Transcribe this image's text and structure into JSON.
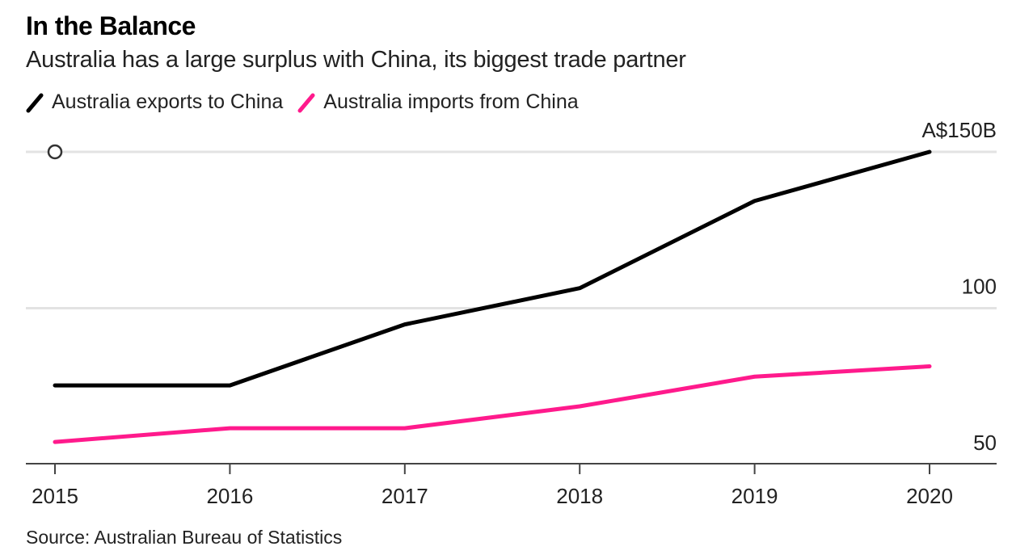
{
  "title": "In the Balance",
  "subtitle": "Australia has a large surplus with China, its biggest trade partner",
  "source": "Source: Australian Bureau of Statistics",
  "legend": [
    {
      "label": "Australia exports to China",
      "color": "#000000"
    },
    {
      "label": "Australia imports from China",
      "color": "#ff1a8c"
    }
  ],
  "chart_data": {
    "type": "line",
    "title": "In the Balance",
    "subtitle": "Australia has a large surplus with China, its biggest trade partner",
    "xlabel": "",
    "ylabel": "",
    "x": [
      "2015",
      "2016",
      "2017",
      "2018",
      "2019",
      "2020"
    ],
    "series": [
      {
        "name": "Australia exports to China",
        "color": "#000000",
        "values": [
          75.3,
          75.3,
          94.8,
          106.4,
          134.3,
          150.0
        ]
      },
      {
        "name": "Australia imports from China",
        "color": "#ff1a8c",
        "values": [
          57.2,
          61.6,
          61.6,
          68.6,
          78.1,
          81.4
        ]
      }
    ],
    "ylim": [
      50,
      150
    ],
    "yticks": [
      {
        "value": 150,
        "label": "A$150B"
      },
      {
        "value": 100,
        "label": "100"
      },
      {
        "value": 50,
        "label": "50"
      }
    ],
    "grid": true,
    "legend_position": "top-left",
    "annotations": [
      {
        "type": "marker-circle",
        "x": "2015",
        "y": 150
      }
    ]
  }
}
